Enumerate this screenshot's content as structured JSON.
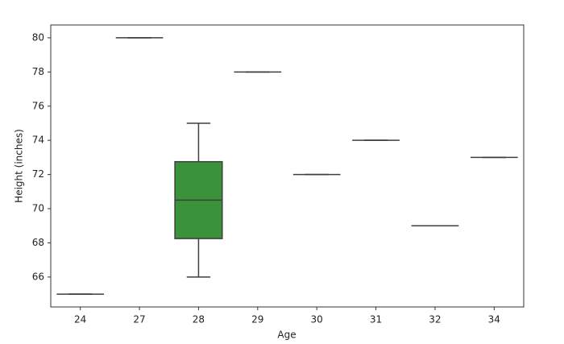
{
  "chart_data": {
    "type": "box",
    "x_label": "Age",
    "y_label": "Height (inches)",
    "categories": [
      "24",
      "27",
      "28",
      "29",
      "30",
      "31",
      "32",
      "34"
    ],
    "colors": [
      "#3274a1",
      "#e1812c",
      "#3a923a",
      "#c03d3e",
      "#9372b2",
      "#845b53",
      "#d684bd",
      "#7f7f7f"
    ],
    "boxes": [
      {
        "min": 65,
        "q1": 65,
        "median": 65,
        "q3": 65,
        "max": 65
      },
      {
        "min": 80,
        "q1": 80,
        "median": 80,
        "q3": 80,
        "max": 80
      },
      {
        "min": 66,
        "q1": 68.25,
        "median": 70.5,
        "q3": 72.75,
        "max": 75
      },
      {
        "min": 78,
        "q1": 78,
        "median": 78,
        "q3": 78,
        "max": 78
      },
      {
        "min": 72,
        "q1": 72,
        "median": 72,
        "q3": 72,
        "max": 72
      },
      {
        "min": 74,
        "q1": 74,
        "median": 74,
        "q3": 74,
        "max": 74
      },
      {
        "min": 69,
        "q1": 69,
        "median": 69,
        "q3": 69,
        "max": 69
      },
      {
        "min": 73,
        "q1": 73,
        "median": 73,
        "q3": 73,
        "max": 73
      }
    ],
    "ylim": [
      64.25,
      80.75
    ],
    "yticks": [
      66,
      68,
      70,
      72,
      74,
      76,
      78,
      80
    ],
    "grid": false
  }
}
